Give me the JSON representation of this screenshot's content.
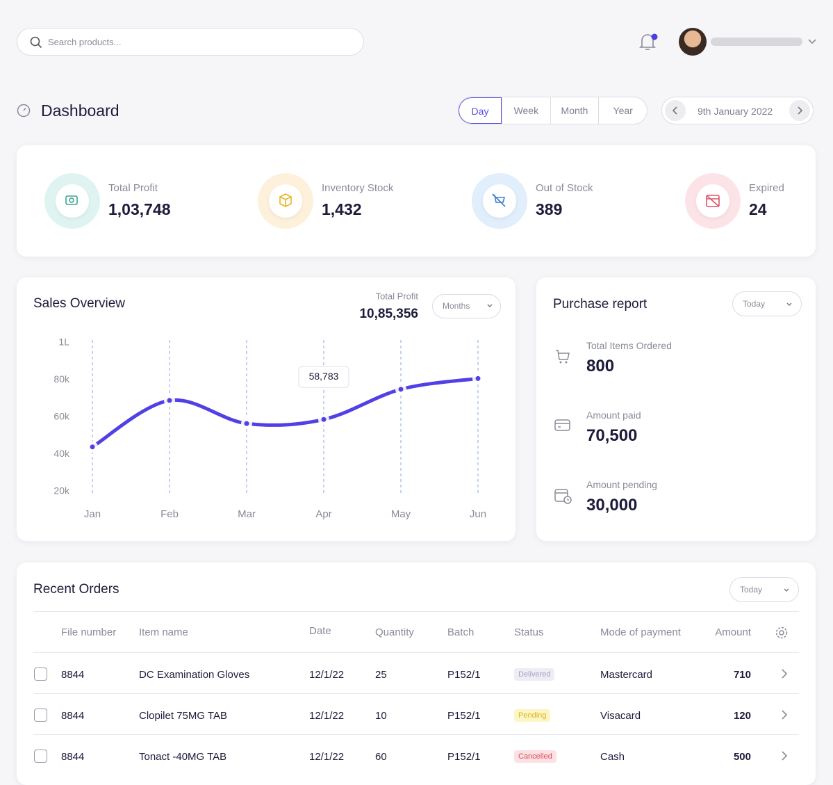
{
  "search_placeholder": "Search products...",
  "header": {
    "title": "Dashboard",
    "periods": [
      "Day",
      "Week",
      "Month",
      "Year"
    ],
    "date": "9th January 2022"
  },
  "stats": [
    {
      "label": "Total Profit",
      "value": "1,03,748"
    },
    {
      "label": "Inventory Stock",
      "value": "1,432"
    },
    {
      "label": "Out of Stock",
      "value": "389"
    },
    {
      "label": "Expired",
      "value": "24"
    }
  ],
  "chart_data": {
    "type": "line",
    "title": "Sales Overview",
    "summary_label": "Total Profit",
    "summary_value": "10,85,356",
    "filter": "Months",
    "categories": [
      "Jan",
      "Feb",
      "Mar",
      "Apr",
      "May",
      "Jun"
    ],
    "values": [
      44000,
      69000,
      56600,
      58783,
      75000,
      80800
    ],
    "value_labels": [
      null,
      null,
      null,
      "58,783",
      null,
      null
    ],
    "color": "#5140e6",
    "ylim": [
      20000,
      100000
    ],
    "yticks": [
      {
        "value": 20000,
        "label": "20k"
      },
      {
        "value": 40000,
        "label": "40k"
      },
      {
        "value": 60000,
        "label": "60k"
      },
      {
        "value": 80000,
        "label": "80k"
      },
      {
        "value": 100000,
        "label": "1L"
      }
    ]
  },
  "purchase_report": {
    "title": "Purchase report",
    "filter": "Today",
    "items": [
      {
        "label": "Total Items Ordered",
        "value": "800"
      },
      {
        "label": "Amount paid",
        "value": "70,500"
      },
      {
        "label": "Amount pending",
        "value": "30,000"
      }
    ]
  },
  "recent_orders": {
    "title": "Recent Orders",
    "filter": "Today",
    "columns": [
      "File number",
      "Item name",
      "Date",
      "Quantity",
      "Batch",
      "Status",
      "Mode of payment",
      "Amount"
    ],
    "rows": [
      [
        "8844",
        "DC Examination Gloves",
        "12/1/22",
        "25",
        "P152/1",
        "Delivered",
        "Mastercard",
        "710"
      ],
      [
        "8844",
        "Clopilet 75MG TAB",
        "12/1/22",
        "10",
        "P152/1",
        "Pending",
        "Visacard",
        "120"
      ],
      [
        "8844",
        "Tonact -40MG TAB",
        "12/1/22",
        "60",
        "P152/1",
        "Cancelled",
        "Cash",
        "500"
      ]
    ]
  }
}
